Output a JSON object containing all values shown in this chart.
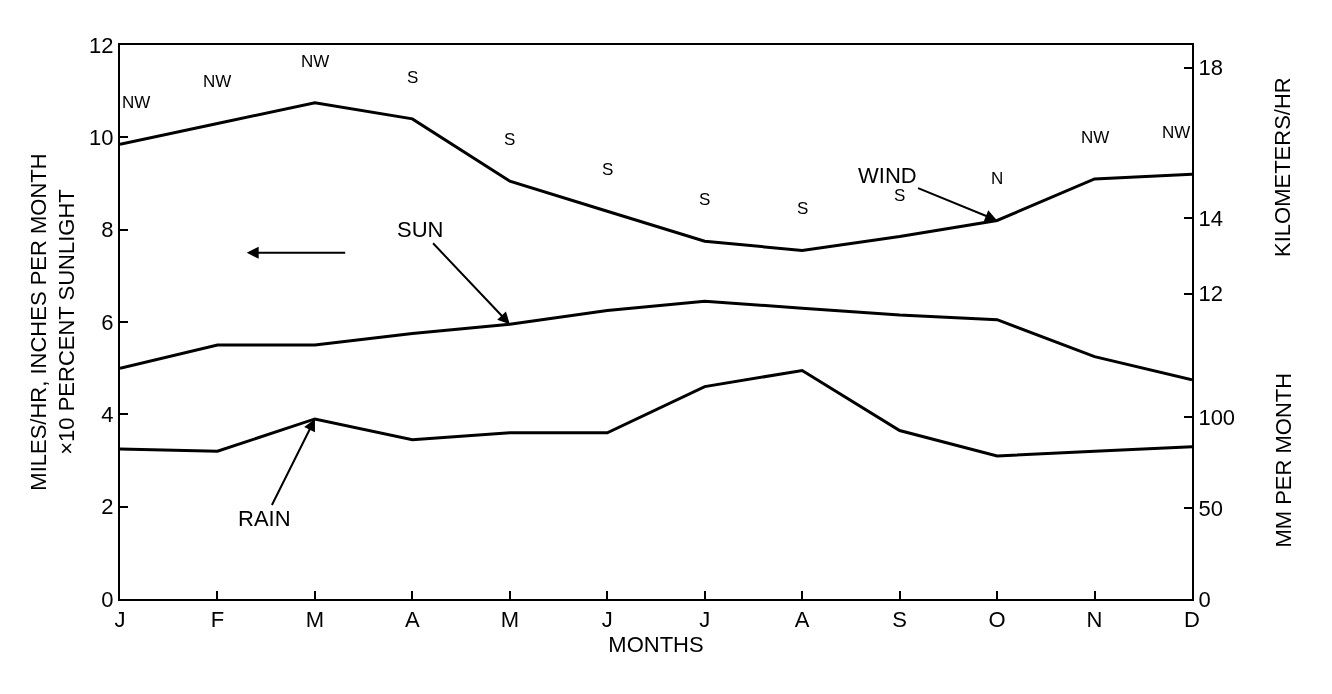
{
  "chart_data": {
    "type": "line",
    "xlabel": "MONTHS",
    "ylabel": "MILES/HR, INCHES PER MONTH\n×10 PERCENT SUNLIGHT",
    "y2label": "MM PER MONTH",
    "y3label": "KILOMETERS/HR",
    "categories": [
      "J",
      "F",
      "M",
      "A",
      "M",
      "J",
      "J",
      "A",
      "S",
      "O",
      "N",
      "D"
    ],
    "ylim": [
      0,
      12
    ],
    "yticks": [
      0,
      2,
      4,
      6,
      8,
      10,
      12
    ],
    "y2lim": [
      0,
      305
    ],
    "y2ticks": [
      0,
      50,
      100
    ],
    "y3lim": [
      3.9,
      18.6
    ],
    "y3ticks": [
      12,
      14,
      18
    ],
    "series": [
      {
        "name": "WIND",
        "color": "#000000",
        "values": [
          9.85,
          10.3,
          10.75,
          10.4,
          9.05,
          8.4,
          7.75,
          7.55,
          7.85,
          8.2,
          9.1,
          9.2
        ],
        "value_labels": [
          "NW",
          "NW",
          "NW",
          "S",
          "S",
          "S",
          "S",
          "S",
          "S",
          "N",
          "NW",
          "NW"
        ]
      },
      {
        "name": "SUN",
        "color": "#000000",
        "values": [
          5.0,
          5.5,
          5.5,
          5.75,
          5.95,
          6.25,
          6.45,
          6.3,
          6.15,
          6.05,
          5.25,
          4.75
        ]
      },
      {
        "name": "RAIN",
        "color": "#000000",
        "values": [
          3.25,
          3.2,
          3.9,
          3.45,
          3.6,
          3.6,
          4.6,
          4.95,
          3.65,
          3.1,
          3.2,
          3.3
        ]
      }
    ],
    "grid": false,
    "legend": false,
    "marker": "none",
    "line_style": "solid"
  }
}
